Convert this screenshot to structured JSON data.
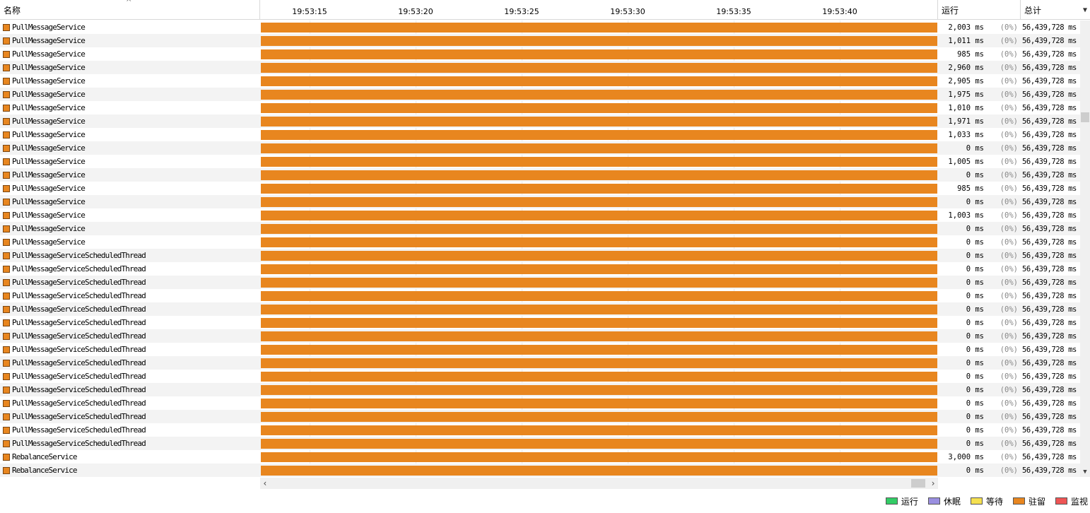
{
  "header": {
    "name_col": "名称",
    "run_col": "运行",
    "total_col": "总计",
    "timeline_ticks": [
      "19:53:15",
      "19:53:20",
      "19:53:25",
      "19:53:30",
      "19:53:35",
      "19:53:40"
    ]
  },
  "threads": [
    {
      "name": "PullMessageService",
      "run": "2,003 ms",
      "pct": "(0%)",
      "total": "56,439,728 ms"
    },
    {
      "name": "PullMessageService",
      "run": "1,011 ms",
      "pct": "(0%)",
      "total": "56,439,728 ms"
    },
    {
      "name": "PullMessageService",
      "run": "985 ms",
      "pct": "(0%)",
      "total": "56,439,728 ms"
    },
    {
      "name": "PullMessageService",
      "run": "2,960 ms",
      "pct": "(0%)",
      "total": "56,439,728 ms"
    },
    {
      "name": "PullMessageService",
      "run": "2,905 ms",
      "pct": "(0%)",
      "total": "56,439,728 ms"
    },
    {
      "name": "PullMessageService",
      "run": "1,975 ms",
      "pct": "(0%)",
      "total": "56,439,728 ms"
    },
    {
      "name": "PullMessageService",
      "run": "1,010 ms",
      "pct": "(0%)",
      "total": "56,439,728 ms"
    },
    {
      "name": "PullMessageService",
      "run": "1,971 ms",
      "pct": "(0%)",
      "total": "56,439,728 ms"
    },
    {
      "name": "PullMessageService",
      "run": "1,033 ms",
      "pct": "(0%)",
      "total": "56,439,728 ms"
    },
    {
      "name": "PullMessageService",
      "run": "0 ms",
      "pct": "(0%)",
      "total": "56,439,728 ms"
    },
    {
      "name": "PullMessageService",
      "run": "1,005 ms",
      "pct": "(0%)",
      "total": "56,439,728 ms"
    },
    {
      "name": "PullMessageService",
      "run": "0 ms",
      "pct": "(0%)",
      "total": "56,439,728 ms"
    },
    {
      "name": "PullMessageService",
      "run": "985 ms",
      "pct": "(0%)",
      "total": "56,439,728 ms"
    },
    {
      "name": "PullMessageService",
      "run": "0 ms",
      "pct": "(0%)",
      "total": "56,439,728 ms"
    },
    {
      "name": "PullMessageService",
      "run": "1,003 ms",
      "pct": "(0%)",
      "total": "56,439,728 ms"
    },
    {
      "name": "PullMessageService",
      "run": "0 ms",
      "pct": "(0%)",
      "total": "56,439,728 ms"
    },
    {
      "name": "PullMessageService",
      "run": "0 ms",
      "pct": "(0%)",
      "total": "56,439,728 ms"
    },
    {
      "name": "PullMessageServiceScheduledThread",
      "run": "0 ms",
      "pct": "(0%)",
      "total": "56,439,728 ms"
    },
    {
      "name": "PullMessageServiceScheduledThread",
      "run": "0 ms",
      "pct": "(0%)",
      "total": "56,439,728 ms"
    },
    {
      "name": "PullMessageServiceScheduledThread",
      "run": "0 ms",
      "pct": "(0%)",
      "total": "56,439,728 ms"
    },
    {
      "name": "PullMessageServiceScheduledThread",
      "run": "0 ms",
      "pct": "(0%)",
      "total": "56,439,728 ms"
    },
    {
      "name": "PullMessageServiceScheduledThread",
      "run": "0 ms",
      "pct": "(0%)",
      "total": "56,439,728 ms"
    },
    {
      "name": "PullMessageServiceScheduledThread",
      "run": "0 ms",
      "pct": "(0%)",
      "total": "56,439,728 ms"
    },
    {
      "name": "PullMessageServiceScheduledThread",
      "run": "0 ms",
      "pct": "(0%)",
      "total": "56,439,728 ms"
    },
    {
      "name": "PullMessageServiceScheduledThread",
      "run": "0 ms",
      "pct": "(0%)",
      "total": "56,439,728 ms"
    },
    {
      "name": "PullMessageServiceScheduledThread",
      "run": "0 ms",
      "pct": "(0%)",
      "total": "56,439,728 ms"
    },
    {
      "name": "PullMessageServiceScheduledThread",
      "run": "0 ms",
      "pct": "(0%)",
      "total": "56,439,728 ms"
    },
    {
      "name": "PullMessageServiceScheduledThread",
      "run": "0 ms",
      "pct": "(0%)",
      "total": "56,439,728 ms"
    },
    {
      "name": "PullMessageServiceScheduledThread",
      "run": "0 ms",
      "pct": "(0%)",
      "total": "56,439,728 ms"
    },
    {
      "name": "PullMessageServiceScheduledThread",
      "run": "0 ms",
      "pct": "(0%)",
      "total": "56,439,728 ms"
    },
    {
      "name": "PullMessageServiceScheduledThread",
      "run": "0 ms",
      "pct": "(0%)",
      "total": "56,439,728 ms"
    },
    {
      "name": "PullMessageServiceScheduledThread",
      "run": "0 ms",
      "pct": "(0%)",
      "total": "56,439,728 ms"
    },
    {
      "name": "RebalanceService",
      "run": "3,000 ms",
      "pct": "(0%)",
      "total": "56,439,728 ms"
    },
    {
      "name": "RebalanceService",
      "run": "0 ms",
      "pct": "(0%)",
      "total": "56,439,728 ms"
    }
  ],
  "legend": [
    {
      "label": "运行",
      "color": "#33cc66"
    },
    {
      "label": "休眠",
      "color": "#9a8fe0"
    },
    {
      "label": "等待",
      "color": "#f5e050"
    },
    {
      "label": "驻留",
      "color": "#e8861f"
    },
    {
      "label": "监视",
      "color": "#ee5555"
    }
  ],
  "colors": {
    "park_bar": "#e8861f"
  }
}
